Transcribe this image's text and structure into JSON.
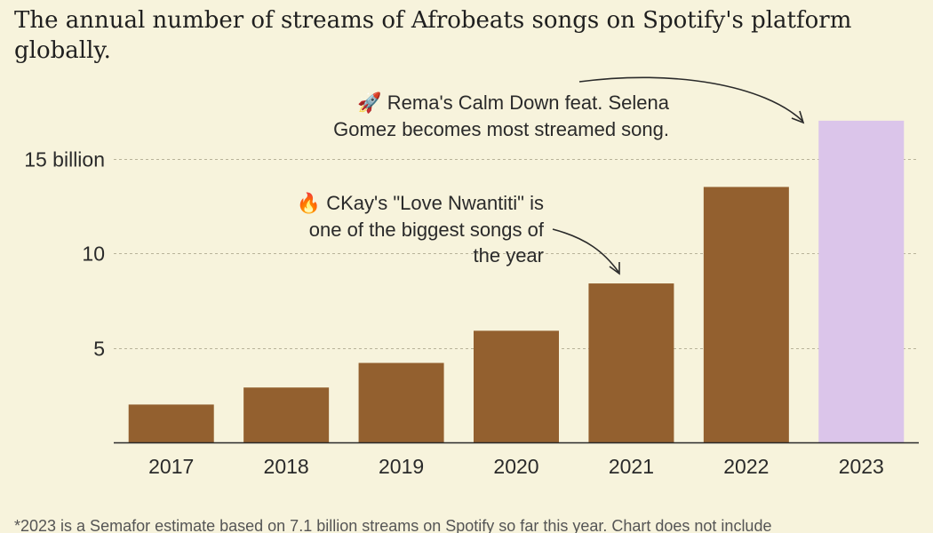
{
  "title": "The annual number of streams of Afrobeats songs on Spotify's platform globally.",
  "colors": {
    "background": "#f7f3dc",
    "bar": "#93602f",
    "highlight_bar": "#dbc5ea",
    "gridline": "#b8b39a",
    "text": "#2a2a2a"
  },
  "chart_data": {
    "type": "bar",
    "categories": [
      "2017",
      "2018",
      "2019",
      "2020",
      "2021",
      "2022",
      "2023"
    ],
    "values": [
      2.0,
      2.9,
      4.2,
      5.9,
      8.4,
      13.5,
      17.0
    ],
    "highlight": [
      "2023"
    ],
    "y_ticks": [
      {
        "value": 5,
        "label": "5"
      },
      {
        "value": 10,
        "label": "10"
      },
      {
        "value": 15,
        "label": "15 billion"
      }
    ],
    "ylim": [
      0,
      18
    ],
    "grid": "horizontal dashed",
    "annotations": [
      {
        "icon": "fire-icon",
        "glyph": "🔥",
        "text": "CKay's \"Love Nwantiti\" is one of the biggest songs of the year",
        "target": "2021"
      },
      {
        "icon": "rocket-icon",
        "glyph": "🚀",
        "text": "Rema's Calm Down feat. Selena Gomez becomes most streamed song.",
        "target": "2023"
      }
    ]
  },
  "footnote": "*2023 is a Semafor estimate based on 7.1 billion streams on Spotify so far this year. Chart does not include"
}
